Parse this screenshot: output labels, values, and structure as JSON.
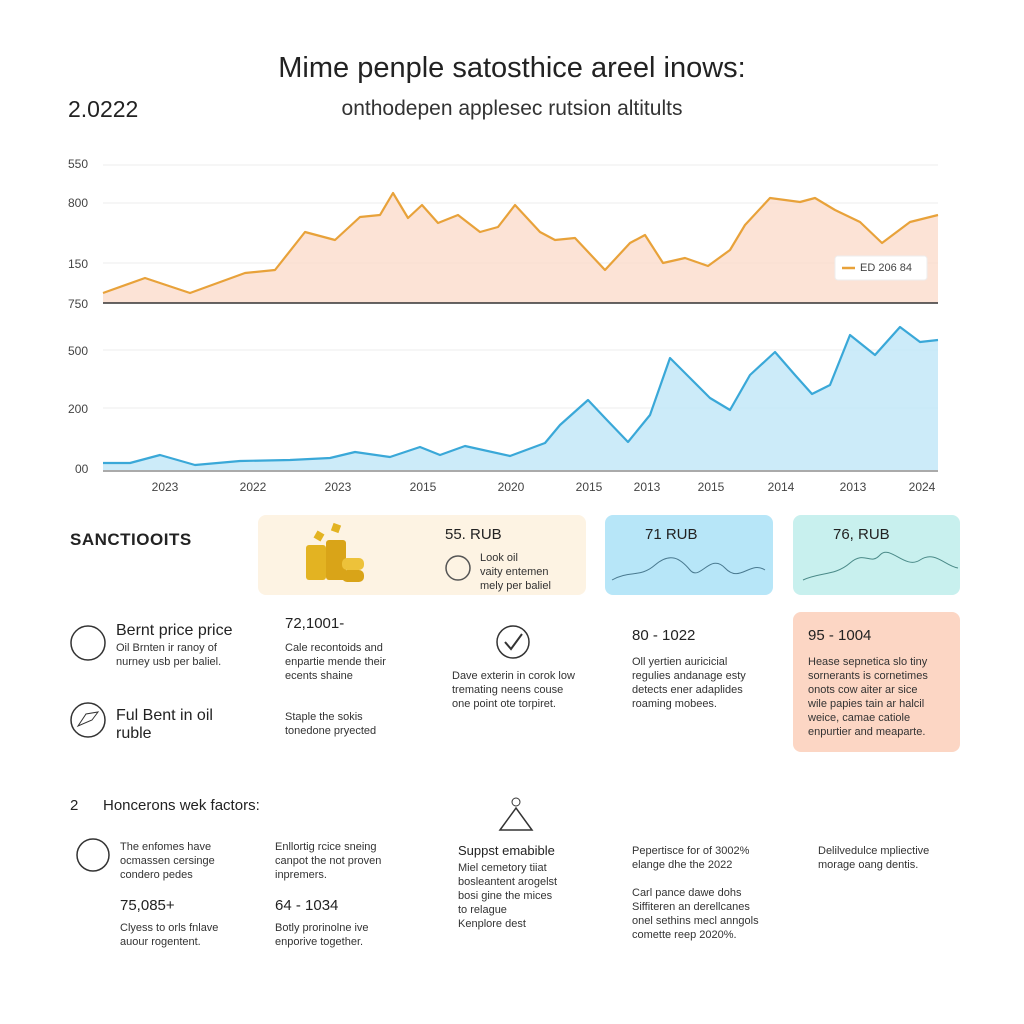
{
  "header": {
    "title": "Mime penple satosthice areel inows:",
    "year": "2.0222",
    "subtitle": "onthodepen applesec rutsion altitults"
  },
  "top_chart": {
    "y_labels": [
      "550",
      "800",
      "150",
      "750"
    ],
    "legend": "ED 206 84"
  },
  "bottom_chart": {
    "y_labels": [
      "500",
      "200",
      "00"
    ],
    "x_labels": [
      "2023",
      "2022",
      "2023",
      "2015",
      "2020",
      "2015",
      "2013",
      "2015",
      "2014",
      "2013",
      "2024"
    ]
  },
  "section": {
    "title": "SANCTIOOITS",
    "cards": [
      {
        "price": "55. RUB",
        "lines": [
          "Look oil",
          "vaity entemen",
          "mely per baliel"
        ]
      },
      {
        "price": "71 RUB"
      },
      {
        "price": "76, RUB"
      }
    ],
    "items": [
      {
        "title": "Bernt price price",
        "lines": [
          "Oil Brnten ir ranoy of",
          "nurney usb per baliel."
        ]
      },
      {
        "title_lines": [
          "Ful Bent in oil",
          "ruble"
        ]
      }
    ],
    "col2": {
      "value": "72,1001-",
      "lines": [
        "Cale recontoids and",
        "enpartie mende their",
        "ecents shaine"
      ],
      "lines2": [
        "Staple the sokis",
        "tonedone pryected"
      ]
    },
    "col3": {
      "lines": [
        "Dave exterin in corok low",
        "tremating neens couse",
        "one point ote torpiret."
      ]
    },
    "col4": {
      "value": "80 - 1022",
      "lines": [
        "Oll yertien auricicial",
        "regulies andanage esty",
        "detects ener adaplides",
        "roaming mobees."
      ]
    },
    "col5": {
      "value": "95 - 1004",
      "lines": [
        "Hease sepnetica slo tiny",
        "sornerants is cornetimes",
        "onots cow aiter ar sice",
        "wile papies tain ar halcil",
        "weice, camae catiole",
        "enpurtier and meaparte."
      ]
    }
  },
  "factors": {
    "number": "2",
    "title": "Honcerons wek factors:",
    "col1": {
      "lines": [
        "The enfomes have",
        "ocmassen cersinge",
        "condero pedes"
      ],
      "value": "75,085+",
      "lines2": [
        "Clyess to orls fnlave",
        "auour rogentent."
      ]
    },
    "col2": {
      "lines": [
        "Enllortig rcice sneing",
        "canpot the not proven",
        "inpremers."
      ],
      "value": "64 - 1034",
      "lines2": [
        "Botly prorinolne ive",
        "enporive together."
      ]
    },
    "col3": {
      "title": "Suppst emabible",
      "bullets": [
        "Miel cemetory tiiat",
        "bosleantent arogelst",
        "bosi gine the mices",
        "to relague",
        "Kenplore dest"
      ]
    },
    "col4": {
      "lines": [
        "Pepertisce for of 3002%",
        "elange dhe the 2022"
      ],
      "lines2": [
        "Carl pance dawe dohs",
        "Siffiteren an derellcanes",
        "onel sethins mecl anngols",
        "comette reep 2020%."
      ]
    },
    "col5": {
      "lines": [
        "Delilvedulce mpliective",
        "morage oang dentis."
      ]
    }
  }
}
